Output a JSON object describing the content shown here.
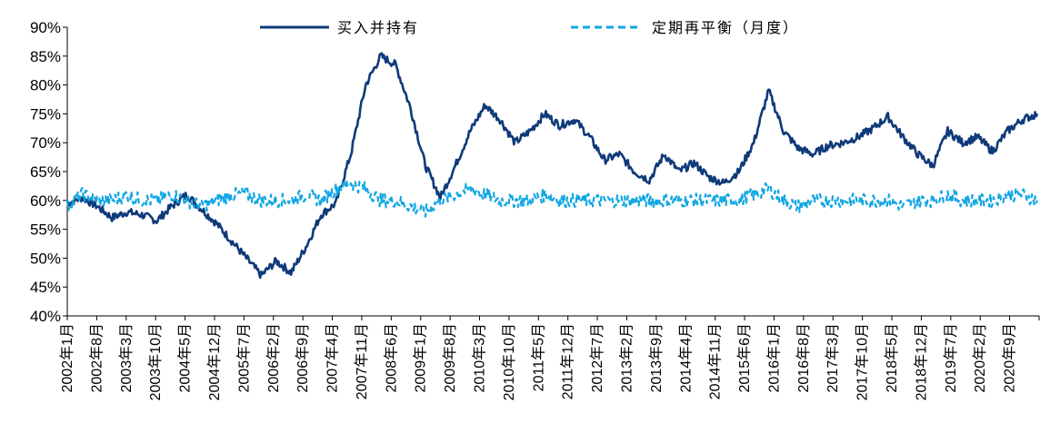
{
  "chart_data": {
    "type": "line",
    "title": "",
    "xlabel": "",
    "ylabel": "",
    "ylim": [
      40,
      90
    ],
    "y_ticks": [
      40,
      45,
      50,
      55,
      60,
      65,
      70,
      75,
      80,
      85,
      90
    ],
    "y_tick_labels": [
      "40%",
      "45%",
      "50%",
      "55%",
      "60%",
      "65%",
      "70%",
      "75%",
      "80%",
      "85%",
      "90%"
    ],
    "x_tick_labels": [
      "2002年1月",
      "2002年8月",
      "2003年3月",
      "2003年10月",
      "2004年5月",
      "2004年12月",
      "2005年7月",
      "2006年2月",
      "2006年9月",
      "2007年4月",
      "2007年11月",
      "2008年6月",
      "2009年1月",
      "2009年8月",
      "2010年3月",
      "2010年10月",
      "2011年5月",
      "2011年12月",
      "2012年7月",
      "2013年2月",
      "2013年9月",
      "2014年4月",
      "2014年11月",
      "2015年6月",
      "2016年1月",
      "2016年8月",
      "2017年3月",
      "2017年10月",
      "2018年5月",
      "2018年12月",
      "2019年7月",
      "2020年2月",
      "2020年9月"
    ],
    "legend_position": "top",
    "colors": {
      "buy_hold": "#0f3a7a",
      "rebalance": "#11a6e3"
    },
    "series": [
      {
        "name": "买入并持有",
        "style": "solid",
        "values": [
          59.5,
          60.5,
          59.0,
          57.0,
          58.0,
          57.5,
          56.5,
          59.0,
          61.0,
          58.5,
          56.0,
          53.0,
          50.0,
          47.0,
          49.5,
          47.5,
          52.0,
          57.5,
          59.5,
          68.0,
          80.0,
          85.0,
          83.5,
          76.0,
          66.0,
          60.5,
          66.0,
          72.0,
          76.5,
          74.0,
          70.0,
          72.0,
          75.0,
          73.0,
          74.0,
          71.0,
          67.0,
          68.0,
          65.0,
          63.5,
          68.0,
          65.0,
          66.5,
          64.0,
          63.0,
          65.0,
          70.0,
          79.0,
          72.0,
          69.0,
          68.0,
          69.5,
          70.0,
          71.0,
          72.5,
          74.5,
          71.0,
          68.0,
          66.0,
          72.0,
          70.0,
          71.0,
          68.5,
          72.0,
          74.0,
          75.0
        ]
      },
      {
        "name": "定期再平衡（月度）",
        "style": "dashed",
        "values": [
          59,
          61,
          60,
          60,
          61,
          60,
          60,
          61,
          60,
          59,
          60,
          61,
          61,
          60,
          60,
          60,
          61,
          60,
          62,
          63,
          62,
          60,
          60,
          59,
          58,
          60,
          61,
          62,
          61,
          60,
          60,
          60,
          61,
          60,
          60,
          60,
          60,
          60,
          60,
          60,
          60,
          60,
          60,
          60,
          60,
          60,
          61,
          62,
          60,
          59,
          60,
          60,
          60,
          60,
          60,
          60,
          59,
          60,
          60,
          61,
          60,
          60,
          60,
          61,
          61,
          60
        ]
      }
    ]
  }
}
